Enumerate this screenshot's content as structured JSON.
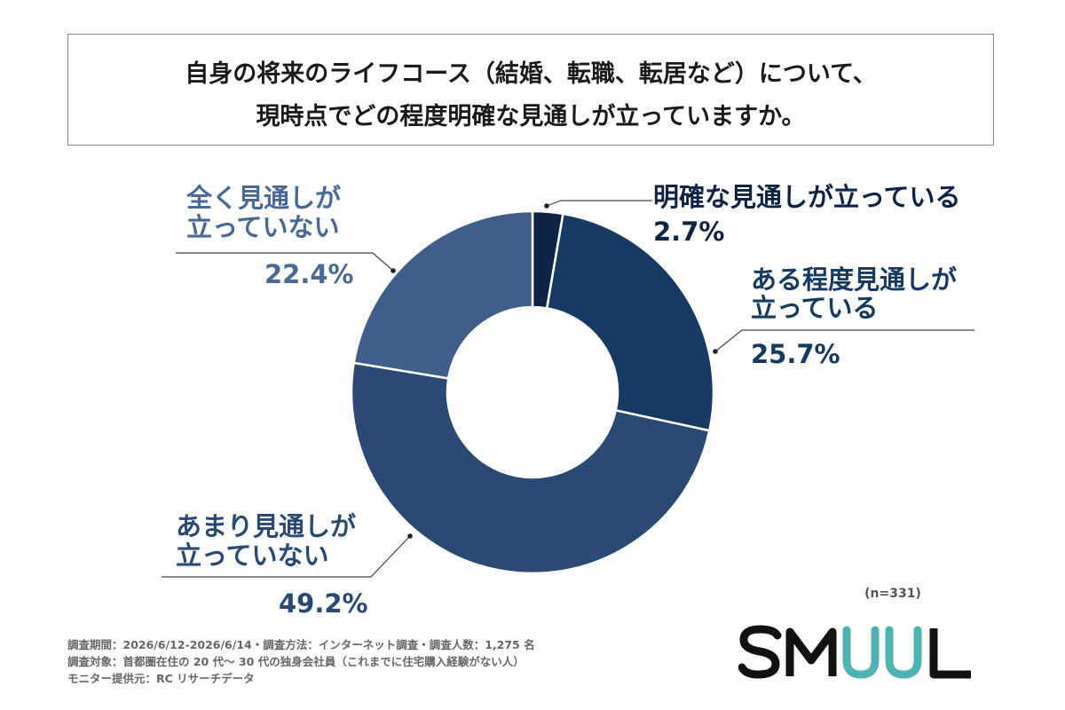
{
  "title": {
    "line1": "自身の将来のライフコース（結婚、転職、転居など）について、",
    "line2": "現時点でどの程度明確な見通しが立っていますか。"
  },
  "chart_data": {
    "type": "pie",
    "donut": true,
    "categories": [
      "明確な見通しが立っている",
      "ある程度見通しが立っている",
      "あまり見通しが立っていない",
      "全く見通しが立っていない"
    ],
    "values": [
      2.7,
      25.7,
      49.2,
      22.4
    ],
    "value_labels": [
      "2.7%",
      "25.7%",
      "49.2%",
      "22.4%"
    ],
    "label_lines": [
      [
        "明確な見通しが立っている"
      ],
      [
        "ある程度見通しが",
        "立っている"
      ],
      [
        "あまり見通しが",
        "立っていない"
      ],
      [
        "全く見通しが",
        "立っていない"
      ]
    ],
    "colors": [
      "#0f2445",
      "#173a63",
      "#2a4a73",
      "#3f5f8a"
    ],
    "label_colors": [
      "#0f2445",
      "#173a63",
      "#2a4a73",
      "#4a6a95"
    ],
    "legend": "none"
  },
  "sample_size": "(n=331)",
  "footnotes": [
    "調査期間：2026/6/12-2026/6/14・調査方法：インターネット調査・調査人数：1,275 名",
    "調査対象：首都圏在住の 20 代～ 30 代の独身会社員（これまでに住宅購入経験がない人）",
    "モニター提供元：RC リサーチデータ"
  ],
  "logo": {
    "text": "SMUUL",
    "colors": {
      "dark": "#111111",
      "accent": "#4fb3b3"
    }
  }
}
